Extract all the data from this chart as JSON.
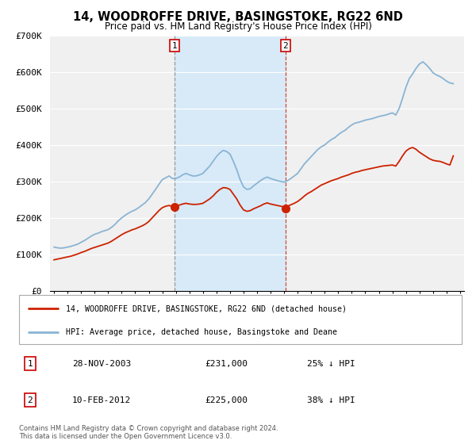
{
  "title": "14, WOODROFFE DRIVE, BASINGSTOKE, RG22 6ND",
  "subtitle": "Price paid vs. HM Land Registry's House Price Index (HPI)",
  "hpi_color": "#8ab4d4",
  "price_color": "#cc2200",
  "background_color": "#f0f0f0",
  "shade_color": "#d8eaf8",
  "grid_color": "#ffffff",
  "ylim": [
    0,
    700000
  ],
  "yticks": [
    0,
    100000,
    200000,
    300000,
    400000,
    500000,
    600000,
    700000
  ],
  "ytick_labels": [
    "£0",
    "£100K",
    "£200K",
    "£300K",
    "£400K",
    "£500K",
    "£600K",
    "£700K"
  ],
  "xmin": 1994.7,
  "xmax": 2025.3,
  "sale1_x": 2003.91,
  "sale1_y": 231000,
  "sale1_label": "1",
  "sale1_date": "28-NOV-2003",
  "sale1_price": "£231,000",
  "sale1_hpi": "25% ↓ HPI",
  "sale2_x": 2012.11,
  "sale2_y": 225000,
  "sale2_label": "2",
  "sale2_date": "10-FEB-2012",
  "sale2_price": "£225,000",
  "sale2_hpi": "38% ↓ HPI",
  "legend_line1": "14, WOODROFFE DRIVE, BASINGSTOKE, RG22 6ND (detached house)",
  "legend_line2": "HPI: Average price, detached house, Basingstoke and Deane",
  "footer1": "Contains HM Land Registry data © Crown copyright and database right 2024.",
  "footer2": "This data is licensed under the Open Government Licence v3.0.",
  "hpi_data_x": [
    1995.0,
    1995.25,
    1995.5,
    1995.75,
    1996.0,
    1996.25,
    1996.5,
    1996.75,
    1997.0,
    1997.25,
    1997.5,
    1997.75,
    1998.0,
    1998.25,
    1998.5,
    1998.75,
    1999.0,
    1999.25,
    1999.5,
    1999.75,
    2000.0,
    2000.25,
    2000.5,
    2000.75,
    2001.0,
    2001.25,
    2001.5,
    2001.75,
    2002.0,
    2002.25,
    2002.5,
    2002.75,
    2003.0,
    2003.25,
    2003.5,
    2003.75,
    2004.0,
    2004.25,
    2004.5,
    2004.75,
    2005.0,
    2005.25,
    2005.5,
    2005.75,
    2006.0,
    2006.25,
    2006.5,
    2006.75,
    2007.0,
    2007.25,
    2007.5,
    2007.75,
    2008.0,
    2008.25,
    2008.5,
    2008.75,
    2009.0,
    2009.25,
    2009.5,
    2009.75,
    2010.0,
    2010.25,
    2010.5,
    2010.75,
    2011.0,
    2011.25,
    2011.5,
    2011.75,
    2012.0,
    2012.25,
    2012.5,
    2012.75,
    2013.0,
    2013.25,
    2013.5,
    2013.75,
    2014.0,
    2014.25,
    2014.5,
    2014.75,
    2015.0,
    2015.25,
    2015.5,
    2015.75,
    2016.0,
    2016.25,
    2016.5,
    2016.75,
    2017.0,
    2017.25,
    2017.5,
    2017.75,
    2018.0,
    2018.25,
    2018.5,
    2018.75,
    2019.0,
    2019.25,
    2019.5,
    2019.75,
    2020.0,
    2020.25,
    2020.5,
    2020.75,
    2021.0,
    2021.25,
    2021.5,
    2021.75,
    2022.0,
    2022.25,
    2022.5,
    2022.75,
    2023.0,
    2023.25,
    2023.5,
    2023.75,
    2024.0,
    2024.25,
    2024.5
  ],
  "hpi_data_y": [
    120000,
    118000,
    117000,
    118000,
    120000,
    122000,
    125000,
    128000,
    133000,
    138000,
    144000,
    150000,
    155000,
    158000,
    162000,
    165000,
    168000,
    174000,
    182000,
    192000,
    200000,
    207000,
    213000,
    218000,
    222000,
    228000,
    235000,
    242000,
    252000,
    265000,
    278000,
    292000,
    305000,
    310000,
    315000,
    308000,
    308000,
    312000,
    318000,
    322000,
    318000,
    315000,
    315000,
    318000,
    322000,
    332000,
    342000,
    355000,
    368000,
    378000,
    385000,
    382000,
    375000,
    355000,
    332000,
    305000,
    285000,
    278000,
    280000,
    288000,
    295000,
    302000,
    308000,
    312000,
    308000,
    305000,
    302000,
    300000,
    298000,
    302000,
    308000,
    315000,
    322000,
    335000,
    348000,
    358000,
    368000,
    378000,
    388000,
    395000,
    400000,
    408000,
    415000,
    420000,
    428000,
    435000,
    440000,
    448000,
    455000,
    460000,
    462000,
    465000,
    468000,
    470000,
    472000,
    475000,
    478000,
    480000,
    482000,
    485000,
    488000,
    482000,
    500000,
    528000,
    558000,
    582000,
    595000,
    610000,
    622000,
    628000,
    620000,
    610000,
    598000,
    592000,
    588000,
    582000,
    575000,
    570000,
    568000
  ],
  "price_data_x": [
    1995.0,
    1995.25,
    1995.5,
    1995.75,
    1996.0,
    1996.25,
    1996.5,
    1996.75,
    1997.0,
    1997.25,
    1997.5,
    1997.75,
    1998.0,
    1998.25,
    1998.5,
    1998.75,
    1999.0,
    1999.25,
    1999.5,
    1999.75,
    2000.0,
    2000.25,
    2000.5,
    2000.75,
    2001.0,
    2001.25,
    2001.5,
    2001.75,
    2002.0,
    2002.25,
    2002.5,
    2002.75,
    2003.0,
    2003.25,
    2003.5,
    2003.75,
    2004.0,
    2004.25,
    2004.5,
    2004.75,
    2005.0,
    2005.25,
    2005.5,
    2005.75,
    2006.0,
    2006.25,
    2006.5,
    2006.75,
    2007.0,
    2007.25,
    2007.5,
    2007.75,
    2008.0,
    2008.25,
    2008.5,
    2008.75,
    2009.0,
    2009.25,
    2009.5,
    2009.75,
    2010.0,
    2010.25,
    2010.5,
    2010.75,
    2011.0,
    2011.25,
    2011.5,
    2011.75,
    2012.0,
    2012.25,
    2012.5,
    2012.75,
    2013.0,
    2013.25,
    2013.5,
    2013.75,
    2014.0,
    2014.25,
    2014.5,
    2014.75,
    2015.0,
    2015.25,
    2015.5,
    2015.75,
    2016.0,
    2016.25,
    2016.5,
    2016.75,
    2017.0,
    2017.25,
    2017.5,
    2017.75,
    2018.0,
    2018.25,
    2018.5,
    2018.75,
    2019.0,
    2019.25,
    2019.5,
    2019.75,
    2020.0,
    2020.25,
    2020.5,
    2020.75,
    2021.0,
    2021.25,
    2021.5,
    2021.75,
    2022.0,
    2022.25,
    2022.5,
    2022.75,
    2023.0,
    2023.25,
    2023.5,
    2023.75,
    2024.0,
    2024.25,
    2024.5
  ],
  "price_data_y": [
    85000,
    87000,
    89000,
    91000,
    93000,
    95000,
    98000,
    101000,
    105000,
    108000,
    112000,
    116000,
    119000,
    122000,
    125000,
    128000,
    131000,
    136000,
    142000,
    148000,
    154000,
    159000,
    163000,
    167000,
    170000,
    174000,
    178000,
    183000,
    190000,
    200000,
    210000,
    220000,
    228000,
    232000,
    234000,
    231000,
    232000,
    235000,
    238000,
    240000,
    238000,
    237000,
    237000,
    238000,
    240000,
    246000,
    252000,
    260000,
    270000,
    278000,
    283000,
    282000,
    278000,
    265000,
    252000,
    235000,
    222000,
    218000,
    220000,
    225000,
    229000,
    233000,
    238000,
    241000,
    238000,
    236000,
    234000,
    232000,
    230000,
    232000,
    236000,
    240000,
    245000,
    252000,
    260000,
    267000,
    272000,
    278000,
    284000,
    290000,
    294000,
    298000,
    302000,
    305000,
    308000,
    312000,
    315000,
    318000,
    322000,
    325000,
    327000,
    330000,
    332000,
    334000,
    336000,
    338000,
    340000,
    342000,
    343000,
    344000,
    345000,
    342000,
    355000,
    370000,
    383000,
    390000,
    393000,
    388000,
    380000,
    374000,
    368000,
    362000,
    358000,
    356000,
    355000,
    352000,
    348000,
    345000,
    370000
  ]
}
